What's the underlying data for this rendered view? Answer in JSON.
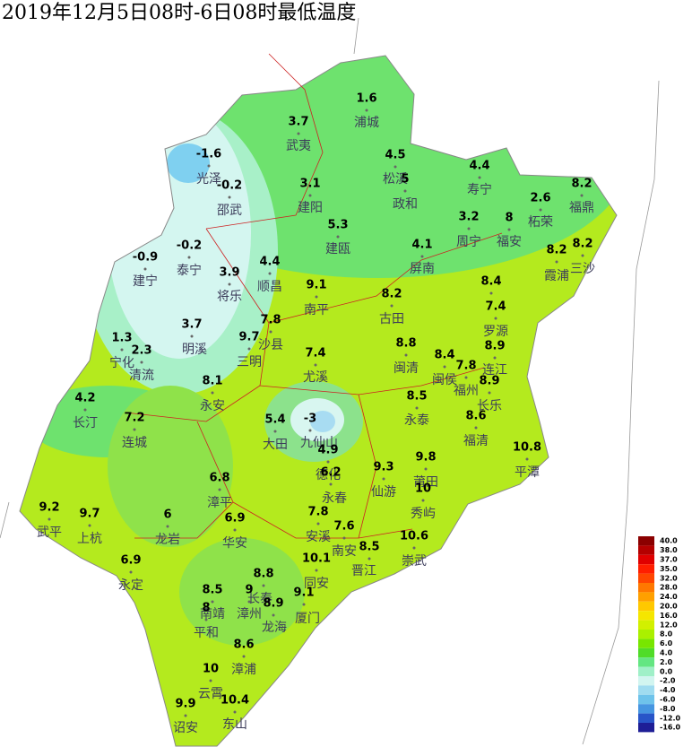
{
  "title": "2019年12月5日08时-6日08时最低温度",
  "stations": [
    {
      "name": "浦城",
      "value": 1.6
    },
    {
      "name": "武夷",
      "value": 3.7
    },
    {
      "name": "松溪",
      "value": 4.5
    },
    {
      "name": "光泽",
      "value": -1.6
    },
    {
      "name": "邵武",
      "value": -0.2
    },
    {
      "name": "建阳",
      "value": 3.1
    },
    {
      "name": "建瓯",
      "value": 5.3
    },
    {
      "name": "政和",
      "value": 5
    },
    {
      "name": "寿宁",
      "value": 4.4
    },
    {
      "name": "柘荣",
      "value": 2.6
    },
    {
      "name": "福鼎",
      "value": 8.2
    },
    {
      "name": "周宁",
      "value": 3.2
    },
    {
      "name": "福安",
      "value": 8
    },
    {
      "name": "霞浦",
      "value": 8.2
    },
    {
      "name": "三沙",
      "value": 8.2
    },
    {
      "name": "屏南",
      "value": 4.1
    },
    {
      "name": "建宁",
      "value": -0.9
    },
    {
      "name": "泰宁",
      "value": -0.2
    },
    {
      "name": "将乐",
      "value": 3.9
    },
    {
      "name": "顺昌",
      "value": 4.4
    },
    {
      "name": "南平",
      "value": 9.1
    },
    {
      "name": "古田",
      "value": 8.2
    },
    {
      "name": null,
      "value": 8.4
    },
    {
      "name": "罗源",
      "value": 7.4
    },
    {
      "name": "沙县",
      "value": 7.8
    },
    {
      "name": "明溪",
      "value": 3.7
    },
    {
      "name": "三明",
      "value": 9.7
    },
    {
      "name": "宁化",
      "value": 1.3
    },
    {
      "name": "清流",
      "value": 2.3
    },
    {
      "name": "尤溪",
      "value": 7.4
    },
    {
      "name": "闽清",
      "value": 8.8
    },
    {
      "name": "闽侯",
      "value": 8.4
    },
    {
      "name": "连江",
      "value": 8.9
    },
    {
      "name": "福州",
      "value": 7.8
    },
    {
      "name": "长乐",
      "value": 8.9
    },
    {
      "name": "永安",
      "value": 8.1
    },
    {
      "name": "长汀",
      "value": 4.2
    },
    {
      "name": "连城",
      "value": 7.2
    },
    {
      "name": "永泰",
      "value": 8.5
    },
    {
      "name": "福清",
      "value": 8.6
    },
    {
      "name": "大田",
      "value": 5.4
    },
    {
      "name": "九仙山",
      "value": -3
    },
    {
      "name": "德化",
      "value": 4.9
    },
    {
      "name": "平潭",
      "value": 10.8
    },
    {
      "name": "莆田",
      "value": 9.8
    },
    {
      "name": "仙游",
      "value": 9.3
    },
    {
      "name": "永春",
      "value": 6.2
    },
    {
      "name": "秀屿",
      "value": 10
    },
    {
      "name": "漳平",
      "value": 6.8
    },
    {
      "name": "武平",
      "value": 9.2
    },
    {
      "name": "上杭",
      "value": 9.7
    },
    {
      "name": "龙岩",
      "value": 6
    },
    {
      "name": "华安",
      "value": 6.9
    },
    {
      "name": "安溪",
      "value": 7.8
    },
    {
      "name": "南安",
      "value": 7.6
    },
    {
      "name": "晋江",
      "value": 8.5
    },
    {
      "name": "崇武",
      "value": 10.6
    },
    {
      "name": "永定",
      "value": 6.9
    },
    {
      "name": "同安",
      "value": 10.1
    },
    {
      "name": "长泰",
      "value": 8.8
    },
    {
      "name": "漳州",
      "value": 9
    },
    {
      "name": "龙海",
      "value": 8.9
    },
    {
      "name": "厦门",
      "value": 9.1
    },
    {
      "name": "南靖",
      "value": 8.5
    },
    {
      "name": "平和",
      "value": 8
    },
    {
      "name": "漳浦",
      "value": 8.6
    },
    {
      "name": "云霄",
      "value": 10
    },
    {
      "name": "东山",
      "value": 10.4
    },
    {
      "name": "诏安",
      "value": 9.9
    }
  ],
  "legend": [
    {
      "value": 40,
      "label": "40.0",
      "color": "#8b0000"
    },
    {
      "value": 38,
      "label": "38.0",
      "color": "#b40000"
    },
    {
      "value": 37,
      "label": "37.0",
      "color": "#e00000"
    },
    {
      "value": 35,
      "label": "35.0",
      "color": "#ff1e00"
    },
    {
      "value": 32,
      "label": "32.0",
      "color": "#ff4600"
    },
    {
      "value": 28,
      "label": "28.0",
      "color": "#ff7800"
    },
    {
      "value": 24,
      "label": "24.0",
      "color": "#ffa000"
    },
    {
      "value": 20,
      "label": "20.0",
      "color": "#ffc800"
    },
    {
      "value": 16,
      "label": "16.0",
      "color": "#f5e600"
    },
    {
      "value": 12,
      "label": "12.0",
      "color": "#d2f000"
    },
    {
      "value": 8,
      "label": "8.0",
      "color": "#aaf000"
    },
    {
      "value": 6,
      "label": "6.0",
      "color": "#78e600"
    },
    {
      "value": 4,
      "label": "4.0",
      "color": "#50dc28"
    },
    {
      "value": 2,
      "label": "2.0",
      "color": "#64e682"
    },
    {
      "value": 0,
      "label": "0.0",
      "color": "#a0f0c8"
    },
    {
      "value": -2,
      "label": "-2.0",
      "color": "#d2f5f0"
    },
    {
      "value": -4,
      "label": "-4.0",
      "color": "#a0dcf0"
    },
    {
      "value": -6,
      "label": "-6.0",
      "color": "#6ec3eb"
    },
    {
      "value": -8,
      "label": "-8.0",
      "color": "#4696e1"
    },
    {
      "value": -12,
      "label": "-12.0",
      "color": "#2855c8"
    },
    {
      "value": -16,
      "label": "-16.0",
      "color": "#1e1e96"
    }
  ]
}
